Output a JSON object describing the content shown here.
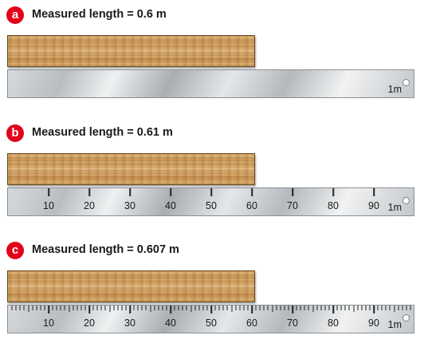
{
  "colors": {
    "badge": "#e3001b",
    "wood": "#d2a060",
    "ruler": "#c8ccd0"
  },
  "unit_label": "1m",
  "panels": [
    {
      "badge": "a",
      "title": "Measured length = 0.6 m",
      "graduation": "none",
      "numbers": []
    },
    {
      "badge": "b",
      "title": "Measured length = 0.61 m",
      "graduation": "tens",
      "numbers": [
        "10",
        "20",
        "30",
        "40",
        "50",
        "60",
        "70",
        "80",
        "90"
      ]
    },
    {
      "badge": "c",
      "title": "Measured length = 0.607 m",
      "graduation": "ones",
      "numbers": [
        "10",
        "20",
        "30",
        "40",
        "50",
        "60",
        "70",
        "80",
        "90"
      ]
    }
  ]
}
